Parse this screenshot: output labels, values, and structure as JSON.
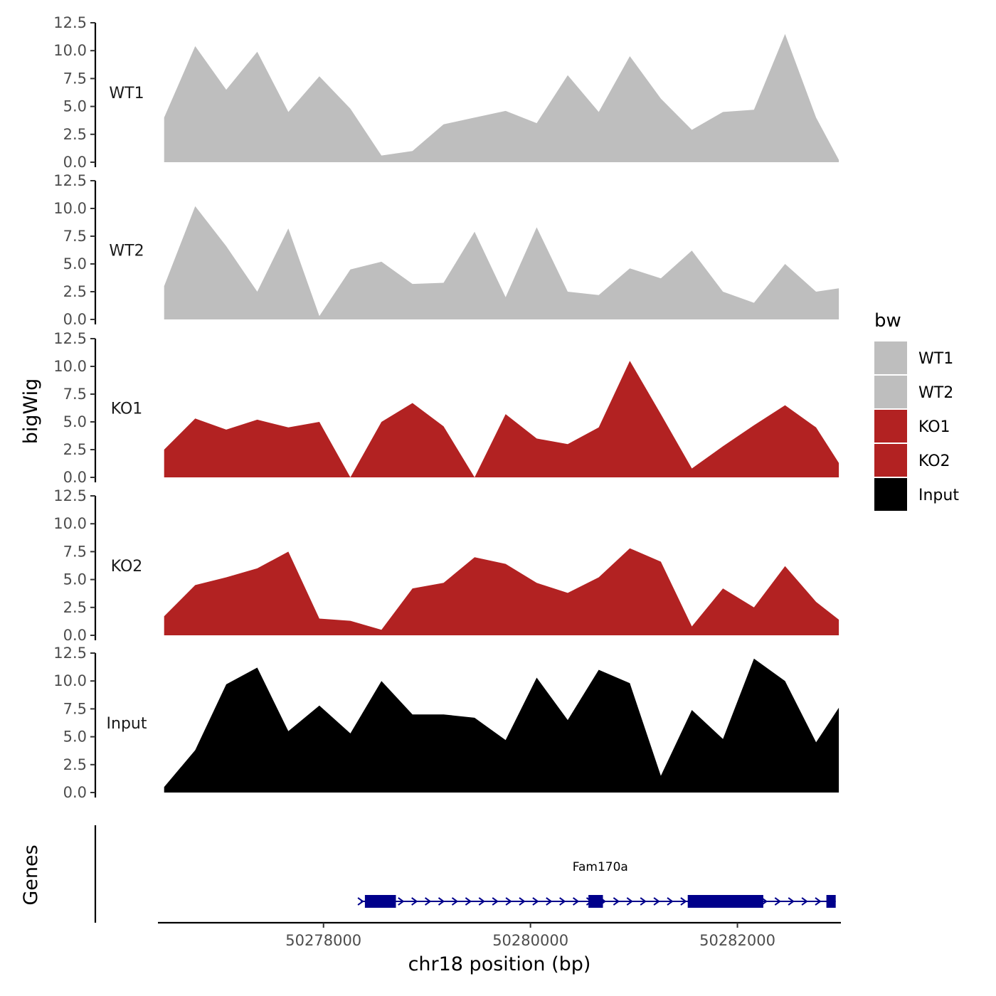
{
  "chart_data": {
    "type": "area",
    "title": "",
    "xlabel": "chr18 position (bp)",
    "ylabel": "bigWig",
    "genes_label": "Genes",
    "xlim": [
      50276400,
      50283000
    ],
    "x_ticks": [
      50278000,
      50280000,
      50282000
    ],
    "x_tick_labels": [
      "50278000",
      "50280000",
      "50282000"
    ],
    "ylim": [
      0,
      12.5
    ],
    "y_ticks": [
      0,
      2.5,
      5,
      7.5,
      10,
      12.5
    ],
    "y_tick_labels": [
      "0.0",
      "2.5",
      "5.0",
      "7.5",
      "10.0",
      "12.5"
    ],
    "legend": {
      "title": "bw",
      "position": "right",
      "entries": [
        {
          "label": "WT1",
          "color": "#BEBEBE"
        },
        {
          "label": "WT2",
          "color": "#BEBEBE"
        },
        {
          "label": "KO1",
          "color": "#B22222"
        },
        {
          "label": "KO2",
          "color": "#B22222"
        },
        {
          "label": "Input",
          "color": "#000000"
        }
      ]
    },
    "x_points": [
      50276460,
      50276760,
      50277060,
      50277360,
      50277660,
      50277960,
      50278260,
      50278560,
      50278860,
      50279160,
      50279460,
      50279760,
      50280060,
      50280360,
      50280660,
      50280960,
      50281260,
      50281560,
      50281860,
      50282160,
      50282460,
      50282760,
      50282980
    ],
    "series": [
      {
        "name": "WT1",
        "color": "#BEBEBE",
        "values": [
          4.0,
          10.4,
          6.5,
          9.9,
          4.5,
          7.7,
          4.8,
          0.6,
          1.0,
          3.4,
          4.0,
          4.6,
          3.5,
          7.8,
          4.5,
          9.5,
          5.7,
          2.9,
          4.5,
          4.7,
          11.5,
          4.0,
          0.2
        ]
      },
      {
        "name": "WT2",
        "color": "#BEBEBE",
        "values": [
          3.0,
          10.2,
          6.6,
          2.5,
          8.2,
          0.3,
          4.5,
          5.2,
          3.2,
          3.3,
          7.9,
          2.0,
          8.3,
          2.5,
          2.2,
          4.6,
          3.7,
          6.2,
          2.5,
          1.5,
          5.0,
          2.5,
          2.8
        ]
      },
      {
        "name": "KO1",
        "color": "#B22222",
        "values": [
          2.5,
          5.3,
          4.3,
          5.2,
          4.5,
          5.0,
          0.0,
          5.0,
          6.7,
          4.6,
          0.0,
          5.7,
          3.5,
          3.0,
          4.5,
          10.5,
          5.7,
          0.8,
          2.8,
          4.7,
          6.5,
          4.5,
          1.3
        ]
      },
      {
        "name": "KO2",
        "color": "#B22222",
        "values": [
          1.7,
          4.5,
          5.2,
          6.0,
          7.5,
          1.5,
          1.3,
          0.5,
          4.2,
          4.7,
          7.0,
          6.4,
          4.7,
          3.8,
          5.2,
          7.8,
          6.6,
          0.8,
          4.2,
          2.5,
          6.2,
          3.0,
          1.4
        ]
      },
      {
        "name": "Input",
        "color": "#000000",
        "values": [
          0.5,
          3.8,
          9.7,
          11.2,
          5.5,
          7.8,
          5.3,
          10.0,
          7.0,
          7.0,
          6.7,
          4.7,
          10.3,
          6.5,
          11.0,
          9.8,
          1.5,
          7.4,
          4.8,
          12.0,
          10.0,
          4.5,
          7.6
        ]
      }
    ],
    "gene": {
      "name": "Fam170a",
      "start": 50278360,
      "end": 50282950,
      "strand": "+",
      "exons": [
        [
          50278400,
          50278700
        ],
        [
          50280560,
          50280700
        ],
        [
          50281520,
          50282250
        ],
        [
          50282860,
          50282950
        ]
      ]
    }
  }
}
